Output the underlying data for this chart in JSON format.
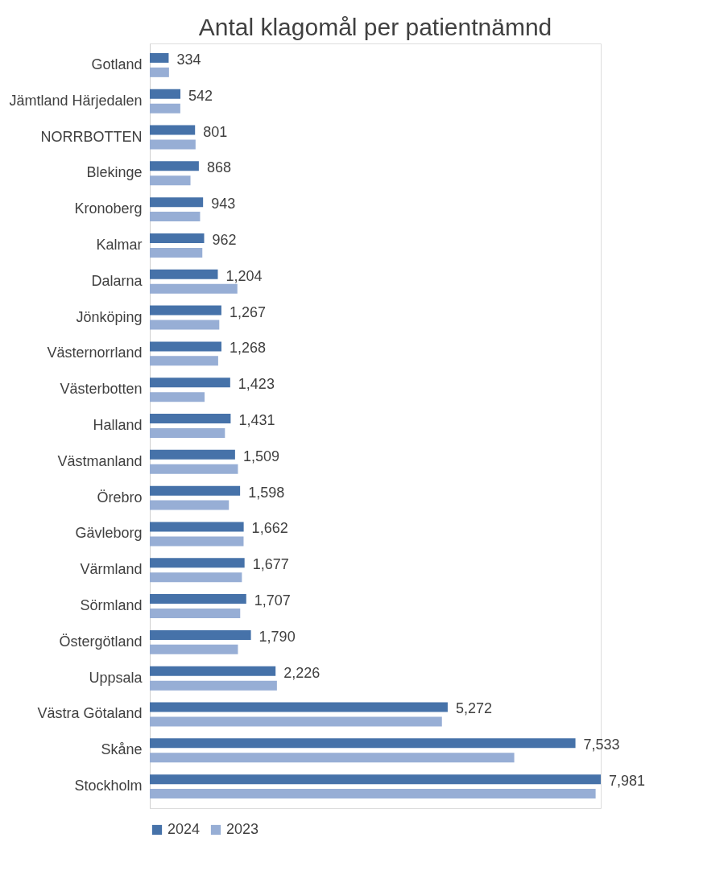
{
  "chart_data": {
    "type": "bar",
    "orientation": "horizontal",
    "title": "Antal klagomål per patientnämnd",
    "categories": [
      "Gotland",
      "Jämtland Härjedalen",
      "NORRBOTTEN",
      "Blekinge",
      "Kronoberg",
      "Kalmar",
      "Dalarna",
      "Jönköping",
      "Västernorrland",
      "Västerbotten",
      "Halland",
      "Västmanland",
      "Örebro",
      "Gävleborg",
      "Värmland",
      "Sörmland",
      "Östergötland",
      "Uppsala",
      "Västra Götaland",
      "Skåne",
      "Stockholm"
    ],
    "series": [
      {
        "name": "2024",
        "color": "#4672a9",
        "values": [
          334,
          542,
          801,
          868,
          943,
          962,
          1204,
          1267,
          1268,
          1423,
          1431,
          1509,
          1598,
          1662,
          1677,
          1707,
          1790,
          2226,
          5272,
          7533,
          7981
        ],
        "value_labels": [
          "334",
          "542",
          "801",
          "868",
          "943",
          "962",
          "1,204",
          "1,267",
          "1,268",
          "1,423",
          "1,431",
          "1,509",
          "1,598",
          "1,662",
          "1,677",
          "1,707",
          "1,790",
          "2,226",
          "5,272",
          "7,533",
          "7,981"
        ]
      },
      {
        "name": "2023",
        "color": "#97aed5",
        "values": [
          340,
          540,
          810,
          720,
          890,
          930,
          1550,
          1230,
          1210,
          970,
          1330,
          1560,
          1400,
          1660,
          1630,
          1600,
          1560,
          2250,
          5170,
          6450,
          7890
        ]
      }
    ],
    "legend": "bottom"
  }
}
